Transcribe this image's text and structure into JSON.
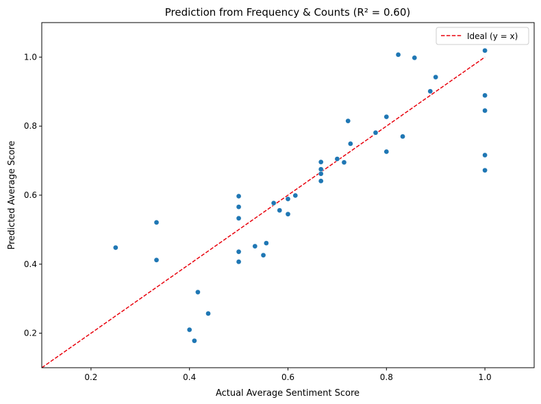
{
  "chart_data": {
    "type": "scatter",
    "title": "Prediction from Frequency & Counts (R² = 0.60)",
    "xlabel": "Actual Average Sentiment Score",
    "ylabel": "Predicted Average Score",
    "xlim": [
      0.1,
      1.1
    ],
    "ylim": [
      0.1,
      1.1
    ],
    "xticks": [
      0.2,
      0.4,
      0.6,
      0.8,
      1.0
    ],
    "xtick_labels": [
      "0.2",
      "0.4",
      "0.6",
      "0.8",
      "1.0"
    ],
    "yticks": [
      0.2,
      0.4,
      0.6,
      0.8,
      1.0
    ],
    "ytick_labels": [
      "0.2",
      "0.4",
      "0.6",
      "0.8",
      "1.0"
    ],
    "grid": false,
    "legend": {
      "placement": "top-right",
      "entries": [
        {
          "label": "Ideal (y = x)",
          "style": "dashed-line",
          "color": "#e8000b"
        }
      ]
    },
    "series": [
      {
        "type": "scatter",
        "color": "#1f77b4",
        "x": [
          0.25,
          0.333,
          0.333,
          0.4,
          0.41,
          0.417,
          0.438,
          0.5,
          0.5,
          0.5,
          0.5,
          0.5,
          0.533,
          0.55,
          0.556,
          0.571,
          0.583,
          0.6,
          0.6,
          0.615,
          0.667,
          0.667,
          0.667,
          0.667,
          0.7,
          0.714,
          0.722,
          0.727,
          0.778,
          0.8,
          0.8,
          0.824,
          0.833,
          0.857,
          0.889,
          0.9,
          1.0,
          1.0,
          1.0,
          1.0,
          1.0
        ],
        "y": [
          0.448,
          0.521,
          0.412,
          0.21,
          0.178,
          0.319,
          0.257,
          0.597,
          0.566,
          0.533,
          0.436,
          0.407,
          0.452,
          0.426,
          0.461,
          0.577,
          0.556,
          0.589,
          0.545,
          0.599,
          0.696,
          0.675,
          0.662,
          0.641,
          0.705,
          0.695,
          0.815,
          0.749,
          0.781,
          0.827,
          0.726,
          1.007,
          0.77,
          0.998,
          0.901,
          0.942,
          1.019,
          0.889,
          0.845,
          0.716,
          0.672
        ]
      },
      {
        "type": "line",
        "name": "Ideal (y = x)",
        "color": "#e8000b",
        "dash": "dashed",
        "x": [
          0.1,
          1.0
        ],
        "y": [
          0.1,
          1.0
        ]
      }
    ]
  }
}
